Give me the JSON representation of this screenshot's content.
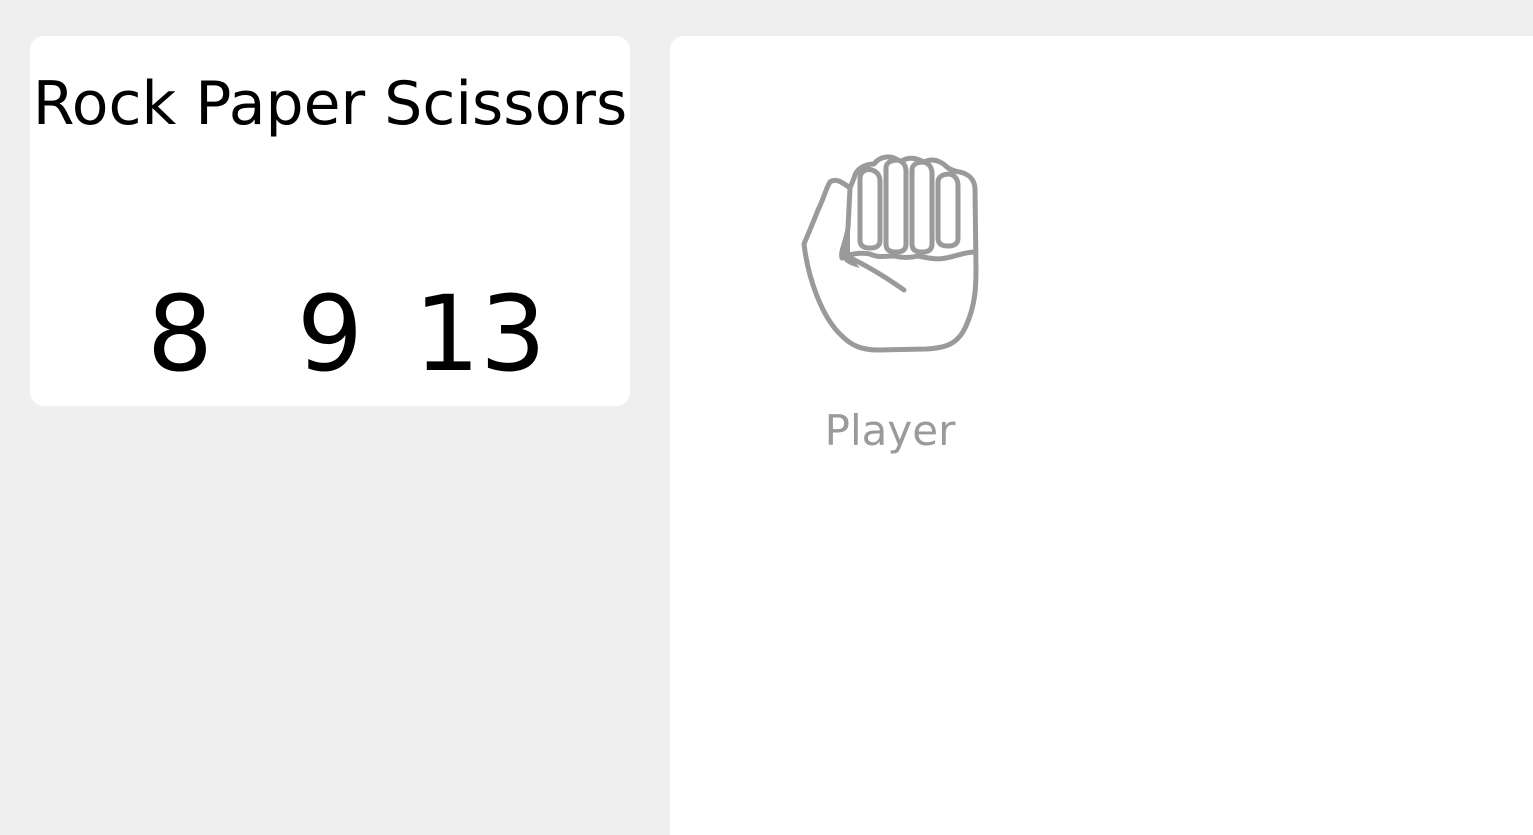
{
  "scoreboard": {
    "title": "Rock Paper Scissors",
    "player_score": "8",
    "computer_score": "9",
    "draws_score": "13"
  },
  "arena": {
    "player": {
      "hand_icon": "rock-fist-icon",
      "label": "Player"
    }
  },
  "colors": {
    "background": "#efefef",
    "card": "#ffffff",
    "muted": "#9a9a9a"
  }
}
